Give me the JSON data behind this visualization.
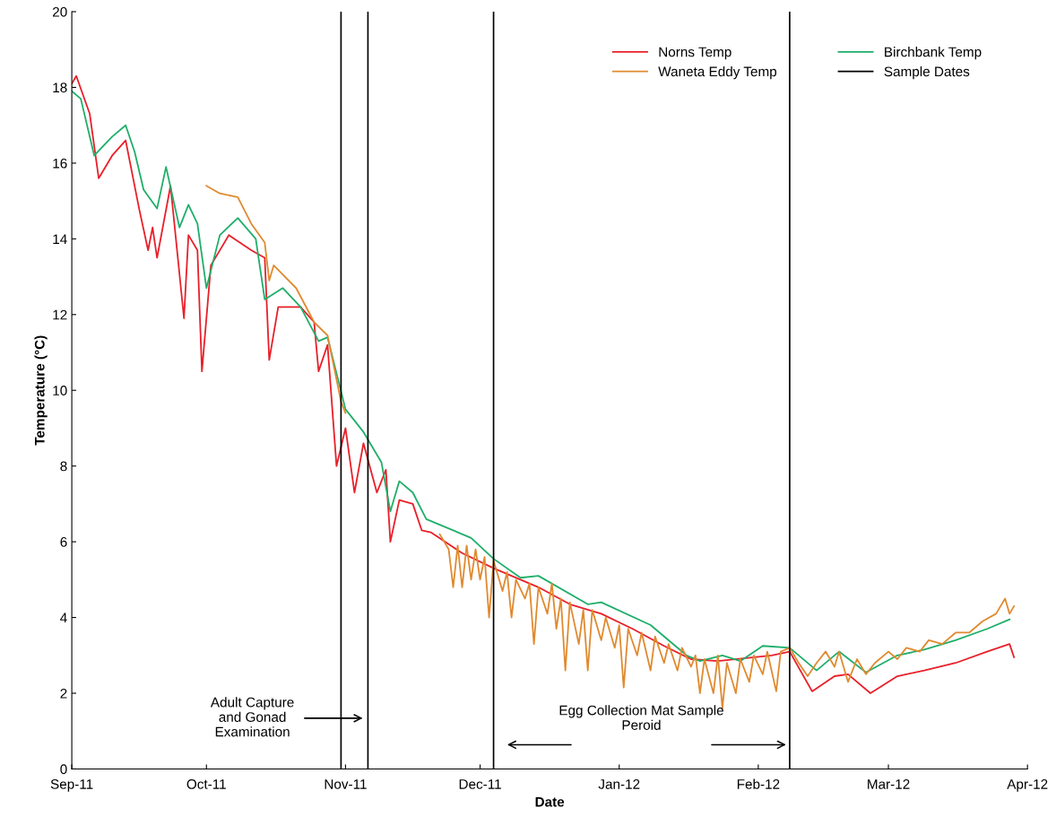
{
  "chart_data": {
    "type": "line",
    "xlabel": "Date",
    "ylabel": "Temperature (°C)",
    "xlim": [
      "2011-09-01",
      "2012-04-01"
    ],
    "xticks": [
      {
        "value": "2011-09-01",
        "label": "Sep-11"
      },
      {
        "value": "2011-10-01",
        "label": "Oct-11"
      },
      {
        "value": "2011-11-01",
        "label": "Nov-11"
      },
      {
        "value": "2011-12-01",
        "label": "Dec-11"
      },
      {
        "value": "2012-01-01",
        "label": "Jan-12"
      },
      {
        "value": "2012-02-01",
        "label": "Feb-12"
      },
      {
        "value": "2012-03-01",
        "label": "Mar-12"
      },
      {
        "value": "2012-04-01",
        "label": "Apr-12"
      }
    ],
    "ylim": [
      0,
      20
    ],
    "yticks": [
      0,
      2,
      4,
      6,
      8,
      10,
      12,
      14,
      16,
      18,
      20
    ],
    "grid": false,
    "legend": "top right",
    "marker": "none",
    "line_style": "solid",
    "series": [
      {
        "name": "Norns Temp",
        "color": "#e8202a",
        "x": [
          "2011-09-01",
          "2011-09-02",
          "2011-09-05",
          "2011-09-07",
          "2011-09-10",
          "2011-09-13",
          "2011-09-16",
          "2011-09-18",
          "2011-09-19",
          "2011-09-20",
          "2011-09-23",
          "2011-09-26",
          "2011-09-27",
          "2011-09-29",
          "2011-09-30",
          "2011-10-02",
          "2011-10-06",
          "2011-10-11",
          "2011-10-14",
          "2011-10-15",
          "2011-10-17",
          "2011-10-22",
          "2011-10-25",
          "2011-10-26",
          "2011-10-28",
          "2011-10-30",
          "2011-11-01",
          "2011-11-03",
          "2011-11-05",
          "2011-11-08",
          "2011-11-10",
          "2011-11-11",
          "2011-11-13",
          "2011-11-16",
          "2011-11-18",
          "2011-11-20",
          "2011-11-27",
          "2011-12-04",
          "2011-12-14",
          "2011-12-21",
          "2011-12-28",
          "2012-01-04",
          "2012-01-11",
          "2012-01-17",
          "2012-01-23",
          "2012-02-04",
          "2012-02-08",
          "2012-02-13",
          "2012-02-18",
          "2012-02-21",
          "2012-02-26",
          "2012-03-03",
          "2012-03-09",
          "2012-03-16",
          "2012-03-23",
          "2012-03-28",
          "2012-03-29"
        ],
        "values": [
          18.1,
          18.3,
          17.3,
          15.6,
          16.2,
          16.6,
          14.8,
          13.7,
          14.3,
          13.5,
          15.4,
          11.9,
          14.1,
          13.7,
          10.5,
          13.3,
          14.1,
          13.7,
          13.5,
          10.8,
          12.2,
          12.2,
          11.8,
          10.5,
          11.2,
          8.0,
          9.0,
          7.3,
          8.6,
          7.3,
          7.9,
          6.0,
          7.1,
          7.0,
          6.3,
          6.25,
          5.7,
          5.3,
          4.8,
          4.35,
          4.1,
          3.7,
          3.25,
          2.9,
          2.85,
          3.0,
          3.1,
          2.05,
          2.45,
          2.5,
          2.0,
          2.45,
          2.6,
          2.8,
          3.1,
          3.3,
          2.95
        ]
      },
      {
        "name": "Birchbank Temp",
        "color": "#1fae6a",
        "x": [
          "2011-09-01",
          "2011-09-03",
          "2011-09-06",
          "2011-09-10",
          "2011-09-13",
          "2011-09-15",
          "2011-09-17",
          "2011-09-20",
          "2011-09-22",
          "2011-09-25",
          "2011-09-27",
          "2011-09-29",
          "2011-10-01",
          "2011-10-04",
          "2011-10-08",
          "2011-10-12",
          "2011-10-14",
          "2011-10-18",
          "2011-10-22",
          "2011-10-26",
          "2011-10-28",
          "2011-11-01",
          "2011-11-05",
          "2011-11-09",
          "2011-11-11",
          "2011-11-13",
          "2011-11-16",
          "2011-11-19",
          "2011-11-29",
          "2011-12-04",
          "2011-12-10",
          "2011-12-14",
          "2011-12-25",
          "2011-12-28",
          "2012-01-08",
          "2012-01-16",
          "2012-01-19",
          "2012-01-24",
          "2012-01-28",
          "2012-02-02",
          "2012-02-08",
          "2012-02-14",
          "2012-02-19",
          "2012-02-25",
          "2012-03-03",
          "2012-03-09",
          "2012-03-16",
          "2012-03-23",
          "2012-03-28"
        ],
        "values": [
          17.9,
          17.7,
          16.2,
          16.7,
          17.0,
          16.3,
          15.3,
          14.8,
          15.9,
          14.3,
          14.9,
          14.4,
          12.7,
          14.1,
          14.55,
          14.0,
          12.4,
          12.7,
          12.2,
          11.3,
          11.4,
          9.5,
          8.9,
          8.1,
          6.8,
          7.6,
          7.3,
          6.6,
          6.1,
          5.55,
          5.05,
          5.1,
          4.35,
          4.4,
          3.8,
          3.0,
          2.85,
          3.0,
          2.85,
          3.25,
          3.2,
          2.6,
          3.1,
          2.55,
          3.0,
          3.15,
          3.4,
          3.7,
          3.95
        ]
      },
      {
        "name": "Waneta Eddy Temp",
        "color": "#e08a30",
        "x": [
          "2011-10-01",
          "2011-10-04",
          "2011-10-08",
          "2011-10-11",
          "2011-10-14",
          "2011-10-15",
          "2011-10-16",
          "2011-10-21",
          "2011-10-25",
          "2011-10-28",
          "2011-10-31",
          "2011-11-01",
          "2011-11-10",
          "2011-11-22",
          "2011-11-24",
          "2011-11-25",
          "2011-11-26",
          "2011-11-27",
          "2011-11-28",
          "2011-11-29",
          "2011-11-30",
          "2011-12-01",
          "2011-12-02",
          "2011-12-03",
          "2011-12-04",
          "2011-12-06",
          "2011-12-07",
          "2011-12-08",
          "2011-12-09",
          "2011-12-11",
          "2011-12-12",
          "2011-12-13",
          "2011-12-14",
          "2011-12-16",
          "2011-12-17",
          "2011-12-18",
          "2011-12-19",
          "2011-12-20",
          "2011-12-21",
          "2011-12-23",
          "2011-12-24",
          "2011-12-25",
          "2011-12-26",
          "2011-12-28",
          "2011-12-29",
          "2011-12-31",
          "2012-01-01",
          "2012-01-02",
          "2012-01-03",
          "2012-01-05",
          "2012-01-06",
          "2012-01-08",
          "2012-01-09",
          "2012-01-11",
          "2012-01-12",
          "2012-01-14",
          "2012-01-15",
          "2012-01-17",
          "2012-01-18",
          "2012-01-19",
          "2012-01-20",
          "2012-01-22",
          "2012-01-23",
          "2012-01-24",
          "2012-01-25",
          "2012-01-27",
          "2012-01-28",
          "2012-01-30",
          "2012-01-31",
          "2012-02-02",
          "2012-02-03",
          "2012-02-05",
          "2012-02-06",
          "2012-02-08",
          "2012-02-10",
          "2012-02-12",
          "2012-02-14",
          "2012-02-16",
          "2012-02-18",
          "2012-02-19",
          "2012-02-21",
          "2012-02-23",
          "2012-02-25",
          "2012-02-27",
          "2012-03-01",
          "2012-03-03",
          "2012-03-05",
          "2012-03-08",
          "2012-03-10",
          "2012-03-13",
          "2012-03-16",
          "2012-03-19",
          "2012-03-22",
          "2012-03-25",
          "2012-03-27",
          "2012-03-28",
          "2012-03-29"
        ],
        "values": [
          15.4,
          15.2,
          15.1,
          14.4,
          13.9,
          12.9,
          13.3,
          12.7,
          11.8,
          11.45,
          9.7,
          9.4,
          null,
          6.2,
          5.8,
          4.8,
          5.9,
          4.8,
          5.9,
          5.0,
          5.8,
          5.0,
          5.6,
          4.0,
          5.5,
          4.7,
          5.2,
          4.0,
          5.0,
          4.5,
          4.9,
          3.3,
          4.8,
          4.1,
          4.9,
          3.7,
          4.5,
          2.6,
          4.4,
          3.3,
          4.2,
          2.6,
          4.2,
          3.4,
          4.0,
          3.2,
          3.8,
          2.15,
          3.7,
          3.0,
          3.6,
          2.6,
          3.5,
          2.8,
          3.3,
          2.6,
          3.2,
          2.7,
          3.0,
          2.0,
          2.9,
          2.0,
          3.0,
          1.6,
          2.8,
          2.0,
          2.9,
          2.3,
          3.0,
          2.5,
          3.1,
          2.05,
          3.1,
          3.2,
          2.8,
          2.45,
          2.8,
          3.1,
          2.7,
          3.1,
          2.3,
          2.9,
          2.5,
          2.8,
          3.1,
          2.9,
          3.2,
          3.1,
          3.4,
          3.3,
          3.6,
          3.6,
          3.9,
          4.1,
          4.5,
          4.1,
          4.3
        ]
      },
      {
        "name": "Sample Dates",
        "color": "#000000",
        "x": [
          "2011-10-31",
          "2011-10-31"
        ],
        "values": [
          0,
          20
        ]
      },
      {
        "color": "#000000",
        "x": [
          "2011-11-06",
          "2011-11-06"
        ],
        "values": [
          0,
          20
        ]
      },
      {
        "color": "#000000",
        "x": [
          "2011-12-04",
          "2011-12-04"
        ],
        "values": [
          0,
          20
        ]
      },
      {
        "color": "#000000",
        "x": [
          "2012-02-08",
          "2012-02-08"
        ],
        "values": [
          0,
          20
        ]
      }
    ],
    "annotations": [
      "Adult Capture\nand Gonad\nExamination",
      "Egg Collection Mat Sample\nPeroid"
    ]
  }
}
